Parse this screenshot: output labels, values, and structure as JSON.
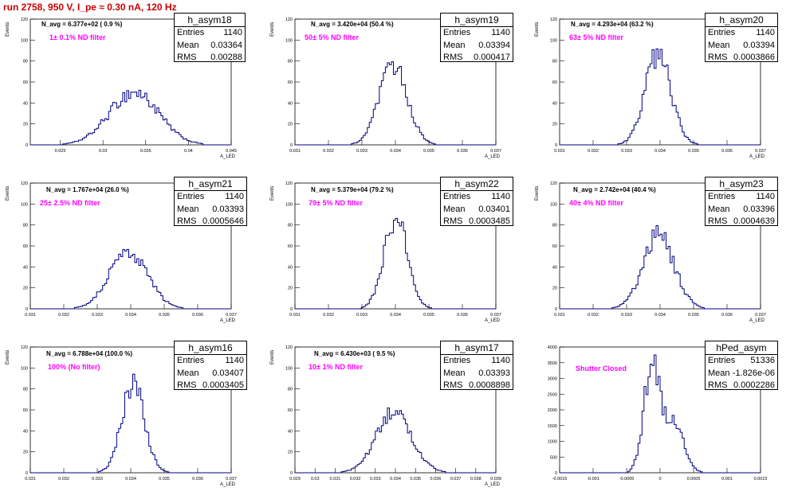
{
  "title": "run 2758,   950 V, I_pe ≈ 0.30 nA, 120 Hz",
  "stats_labels": {
    "entries": "Entries",
    "mean": "Mean",
    "rms": "RMS"
  },
  "colors": {
    "histogram": "#000080",
    "title": "#cc0000",
    "filter_label": "#ff00ff"
  },
  "chart_data": [
    {
      "type": "histogram",
      "name": "h_asym18",
      "n_avg": "N_avg = 6.377e+02 ( 0.9 %)",
      "filter": "1± 0.1% ND filter",
      "entries": "1140",
      "mean": "0.03364",
      "rms": "0.00288",
      "xlabel": "A_LED",
      "ylabel": "Events",
      "xlim": [
        0.0215,
        0.045
      ],
      "ylim": [
        0,
        120
      ],
      "yticks": [
        0,
        20,
        40,
        60,
        80,
        100,
        120
      ],
      "xticks": [
        0.025,
        0.03,
        0.035,
        0.04,
        0.045
      ],
      "xticklabels": [
        "0.025",
        "0.03",
        "0.035",
        "0.04",
        "0.045"
      ],
      "peak": 50
    },
    {
      "type": "histogram",
      "name": "h_asym19",
      "n_avg": "N_avg = 3.420e+04 (50.4 %)",
      "filter": "50± 5% ND filter",
      "entries": "1140",
      "mean": "0.03394",
      "rms": "0.000417",
      "xlabel": "A_LED",
      "ylabel": "Events",
      "xlim": [
        0.031,
        0.037
      ],
      "ylim": [
        0,
        120
      ],
      "yticks": [
        0,
        20,
        40,
        60,
        80,
        100,
        120
      ],
      "xticks": [
        0.031,
        0.032,
        0.033,
        0.034,
        0.035,
        0.036,
        0.037
      ],
      "xticklabels": [
        "0.031",
        "0.032",
        "0.033",
        "0.034",
        "0.035",
        "0.036",
        "0.037"
      ],
      "peak": 76
    },
    {
      "type": "histogram",
      "name": "h_asym20",
      "n_avg": "N_avg = 4.293e+04 (63.2 %)",
      "filter": "63± 5% ND filter",
      "entries": "1140",
      "mean": "0.03394",
      "rms": "0.0003866",
      "xlabel": "A_LED",
      "ylabel": "Events",
      "xlim": [
        0.031,
        0.037
      ],
      "ylim": [
        0,
        120
      ],
      "yticks": [
        0,
        20,
        40,
        60,
        80,
        100,
        120
      ],
      "xticks": [
        0.031,
        0.032,
        0.033,
        0.034,
        0.035,
        0.036,
        0.037
      ],
      "xticklabels": [
        "0.031",
        "0.032",
        "0.033",
        "0.034",
        "0.035",
        "0.036",
        "0.037"
      ],
      "peak": 86
    },
    {
      "type": "histogram",
      "name": "h_asym21",
      "n_avg": "N_avg = 1.767e+04 (26.0 %)",
      "filter": "25± 2.5% ND filter",
      "entries": "1140",
      "mean": "0.03393",
      "rms": "0.0005646",
      "xlabel": "A_LED",
      "ylabel": "Events",
      "xlim": [
        0.031,
        0.037
      ],
      "ylim": [
        0,
        120
      ],
      "yticks": [
        0,
        20,
        40,
        60,
        80,
        100,
        120
      ],
      "xticks": [
        0.031,
        0.032,
        0.033,
        0.034,
        0.035,
        0.036,
        0.037
      ],
      "xticklabels": [
        "0.031",
        "0.032",
        "0.033",
        "0.034",
        "0.035",
        "0.036",
        "0.037"
      ],
      "peak": 55
    },
    {
      "type": "histogram",
      "name": "h_asym22",
      "n_avg": "N_avg = 5.379e+04 (79.2 %)",
      "filter": "79± 5% ND filter",
      "entries": "1140",
      "mean": "0.03401",
      "rms": "0.0003485",
      "xlabel": "A_LED",
      "ylabel": "Events",
      "xlim": [
        0.031,
        0.037
      ],
      "ylim": [
        0,
        120
      ],
      "yticks": [
        0,
        20,
        40,
        60,
        80,
        100,
        120
      ],
      "xticks": [
        0.031,
        0.032,
        0.033,
        0.034,
        0.035,
        0.036,
        0.037
      ],
      "xticklabels": [
        "0.031",
        "0.032",
        "0.033",
        "0.034",
        "0.035",
        "0.036",
        "0.037"
      ],
      "peak": 86
    },
    {
      "type": "histogram",
      "name": "h_asym23",
      "n_avg": "N_avg = 2.742e+04 (40.4 %)",
      "filter": "40± 4% ND filter",
      "entries": "1140",
      "mean": "0.03396",
      "rms": "0.0004639",
      "xlabel": "A_LED",
      "ylabel": "Events",
      "xlim": [
        0.031,
        0.037
      ],
      "ylim": [
        0,
        120
      ],
      "yticks": [
        0,
        20,
        40,
        60,
        80,
        100,
        120
      ],
      "xticks": [
        0.031,
        0.032,
        0.033,
        0.034,
        0.035,
        0.036,
        0.037
      ],
      "xticklabels": [
        "0.031",
        "0.032",
        "0.033",
        "0.034",
        "0.035",
        "0.036",
        "0.037"
      ],
      "peak": 70
    },
    {
      "type": "histogram",
      "name": "h_asym16",
      "n_avg": "N_avg = 6.788e+04 (100.0 %)",
      "filter": "100% (No filter)",
      "entries": "1140",
      "mean": "0.03407",
      "rms": "0.0003405",
      "xlabel": "A_LED",
      "ylabel": "Events",
      "xlim": [
        0.031,
        0.037
      ],
      "ylim": [
        0,
        120
      ],
      "yticks": [
        0,
        20,
        40,
        60,
        80,
        100,
        120
      ],
      "xticks": [
        0.031,
        0.032,
        0.033,
        0.034,
        0.035,
        0.036,
        0.037
      ],
      "xticklabels": [
        "0.031",
        "0.032",
        "0.033",
        "0.034",
        "0.035",
        "0.036",
        "0.037"
      ],
      "peak": 84
    },
    {
      "type": "histogram",
      "name": "h_asym17",
      "n_avg": "N_avg = 6.430e+03 ( 9.5 %)",
      "filter": "10± 1% ND filter",
      "entries": "1140",
      "mean": "0.03393",
      "rms": "0.0008898",
      "xlabel": "A_LED",
      "ylabel": "Events",
      "xlim": [
        0.029,
        0.039
      ],
      "ylim": [
        0,
        120
      ],
      "yticks": [
        0,
        20,
        40,
        60,
        80,
        100,
        120
      ],
      "xticks": [
        0.029,
        0.03,
        0.031,
        0.032,
        0.033,
        0.034,
        0.035,
        0.036,
        0.037,
        0.038,
        0.039
      ],
      "xticklabels": [
        "0.029",
        "0.03",
        "0.031",
        "0.032",
        "0.033",
        "0.034",
        "0.035",
        "0.036",
        "0.037",
        "0.038",
        "0.039"
      ],
      "peak": 57
    },
    {
      "type": "histogram",
      "name": "hPed_asym",
      "n_avg": "",
      "filter": "Shutter Closed",
      "entries": "51336",
      "mean": "-1.826e-06",
      "rms": "0.0002286",
      "xlabel": "",
      "ylabel": "",
      "xlim": [
        -0.0015,
        0.0015
      ],
      "ylim": [
        0,
        4000
      ],
      "yticks": [
        0,
        500,
        1000,
        1500,
        2000,
        2500,
        3000,
        3500,
        4000
      ],
      "xticks": [
        -0.0015,
        -0.001,
        -0.0005,
        0,
        0.0005,
        0.001,
        0.0015
      ],
      "xticklabels": [
        "-0.0015",
        "-0.001",
        "-0.0005",
        "0",
        "0.0005",
        "0.001",
        "0.0015"
      ],
      "peak": 3500,
      "bimodal": true
    }
  ]
}
